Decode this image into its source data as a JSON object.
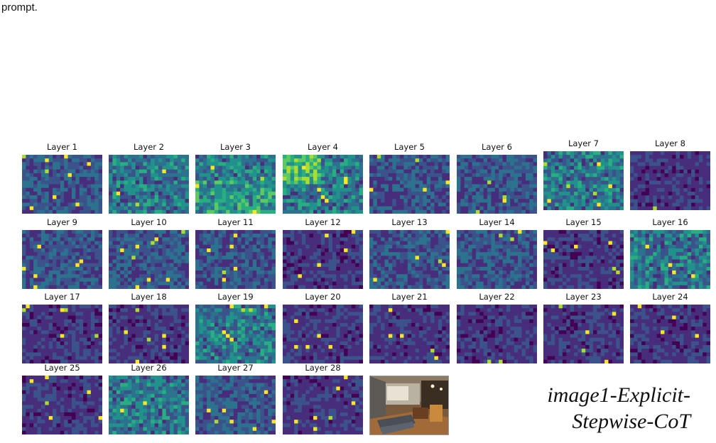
{
  "caption": "prompt.",
  "side_label_lines": [
    "image1-Explicit-",
    "Stepwise-CoT"
  ],
  "colormap": [
    "#440154",
    "#472d7b",
    "#3b528b",
    "#2c728e",
    "#21918c",
    "#28ae80",
    "#5ec962",
    "#addc30",
    "#fde725"
  ],
  "chart_data": {
    "type": "heatmap",
    "title": "",
    "panels": [
      {
        "title": "Layer 1"
      },
      {
        "title": "Layer 2"
      },
      {
        "title": "Layer 3"
      },
      {
        "title": "Layer 4"
      },
      {
        "title": "Layer 5"
      },
      {
        "title": "Layer 6"
      },
      {
        "title": "Layer 7"
      },
      {
        "title": "Layer 8"
      },
      {
        "title": "Layer 9"
      },
      {
        "title": "Layer 10"
      },
      {
        "title": "Layer 11"
      },
      {
        "title": "Layer 12"
      },
      {
        "title": "Layer 13"
      },
      {
        "title": "Layer 14"
      },
      {
        "title": "Layer 15"
      },
      {
        "title": "Layer 16"
      },
      {
        "title": "Layer 17"
      },
      {
        "title": "Layer 18"
      },
      {
        "title": "Layer 19"
      },
      {
        "title": "Layer 20"
      },
      {
        "title": "Layer 21"
      },
      {
        "title": "Layer 22"
      },
      {
        "title": "Layer 23"
      },
      {
        "title": "Layer 24"
      },
      {
        "title": "Layer 25"
      },
      {
        "title": "Layer 26"
      },
      {
        "title": "Layer 27"
      },
      {
        "title": "Layer 28"
      }
    ]
  }
}
